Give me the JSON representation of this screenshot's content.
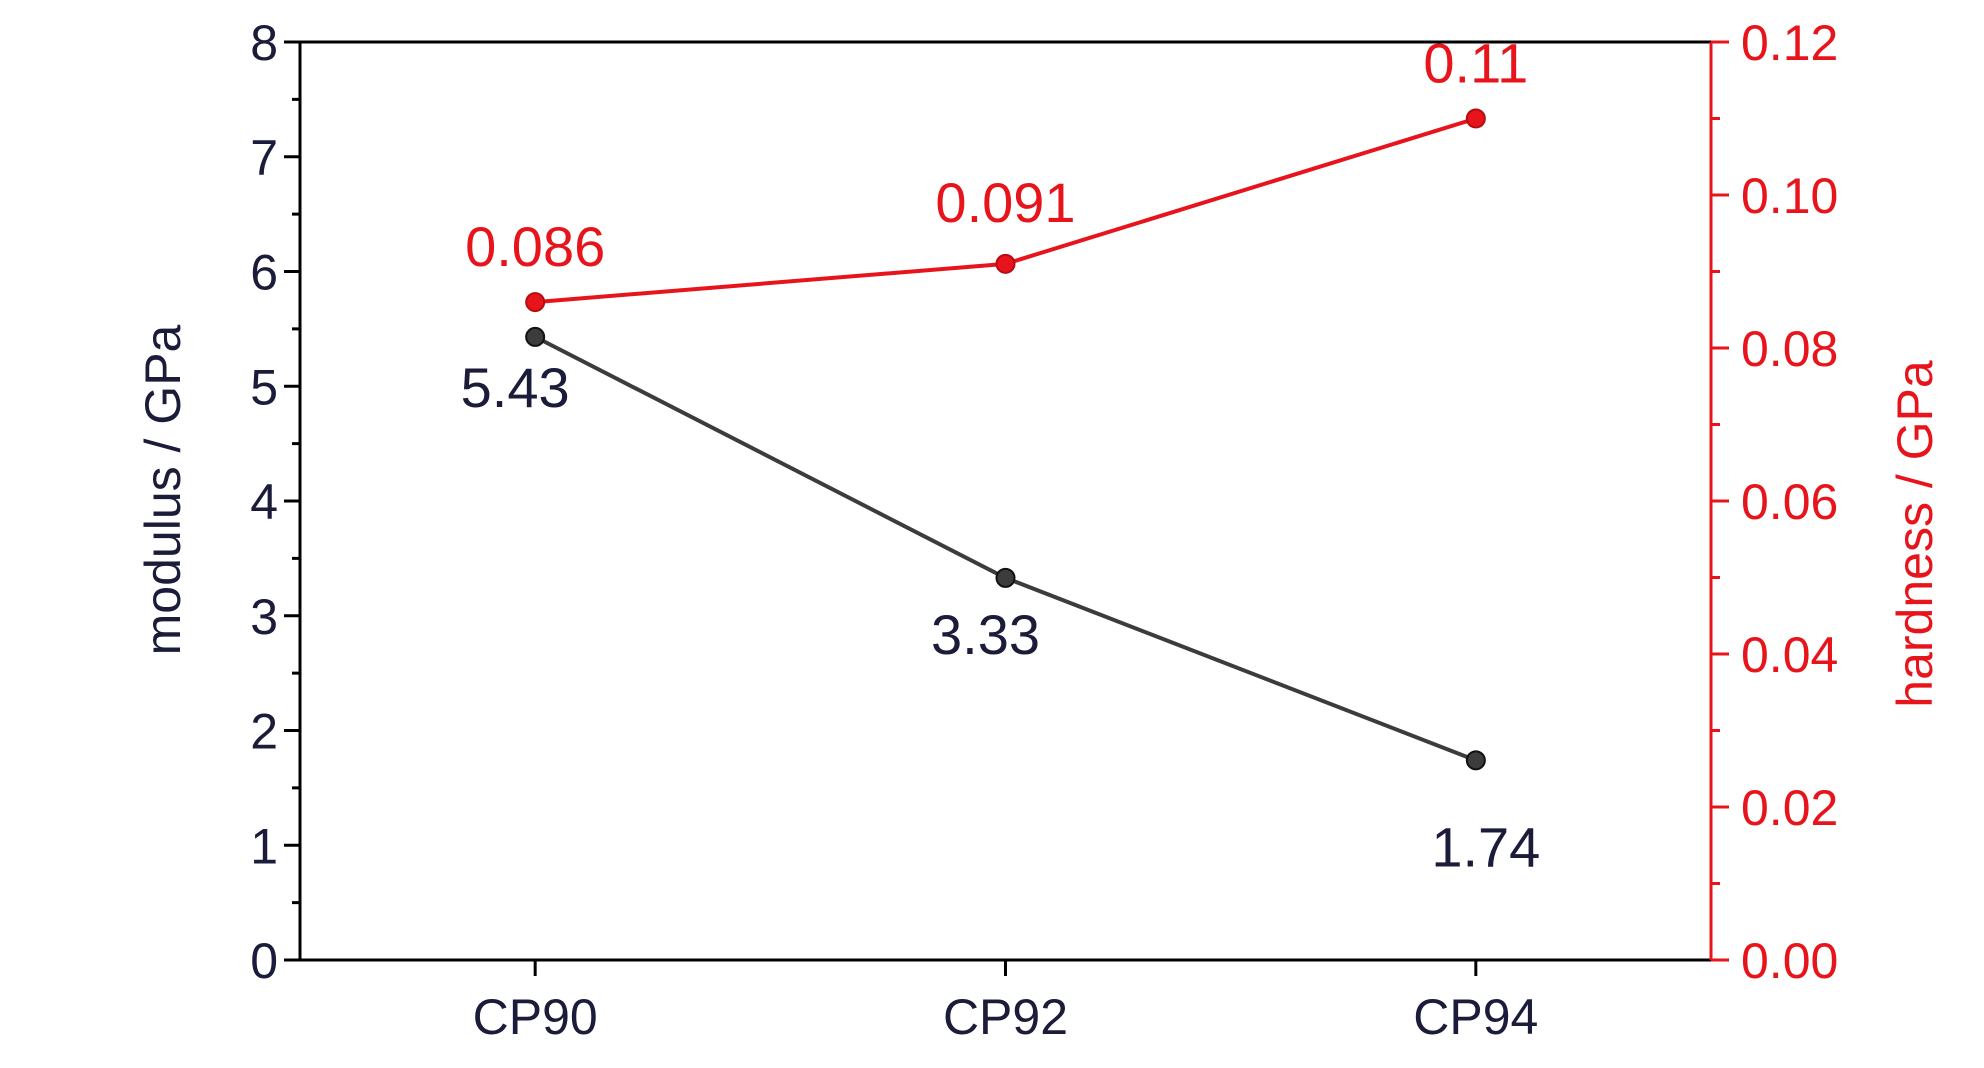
{
  "chart_data": {
    "type": "line",
    "categories": [
      "CP90",
      "CP92",
      "CP94"
    ],
    "series": [
      {
        "name": "modulus",
        "axis": "left",
        "values": [
          5.43,
          3.33,
          1.74
        ],
        "labels": [
          "5.43",
          "3.33",
          "1.74"
        ],
        "color": "#3c3c3c"
      },
      {
        "name": "hardness",
        "axis": "right",
        "values": [
          0.086,
          0.091,
          0.11
        ],
        "labels": [
          "0.086",
          "0.091",
          "0.11"
        ],
        "color": "#e8141b"
      }
    ],
    "ylabel": "modulus / GPa",
    "y2label": "hardness / GPa",
    "ylim": [
      0,
      8
    ],
    "y2lim": [
      0,
      0.12
    ],
    "yticks": [
      "0",
      "1",
      "2",
      "3",
      "4",
      "5",
      "6",
      "7",
      "8"
    ],
    "y2ticks": [
      "0.00",
      "0.02",
      "0.04",
      "0.06",
      "0.08",
      "0.10",
      "0.12"
    ],
    "colors": {
      "left_axis": "#1b1b3a",
      "right_axis": "#e8141b"
    },
    "grid": false
  }
}
